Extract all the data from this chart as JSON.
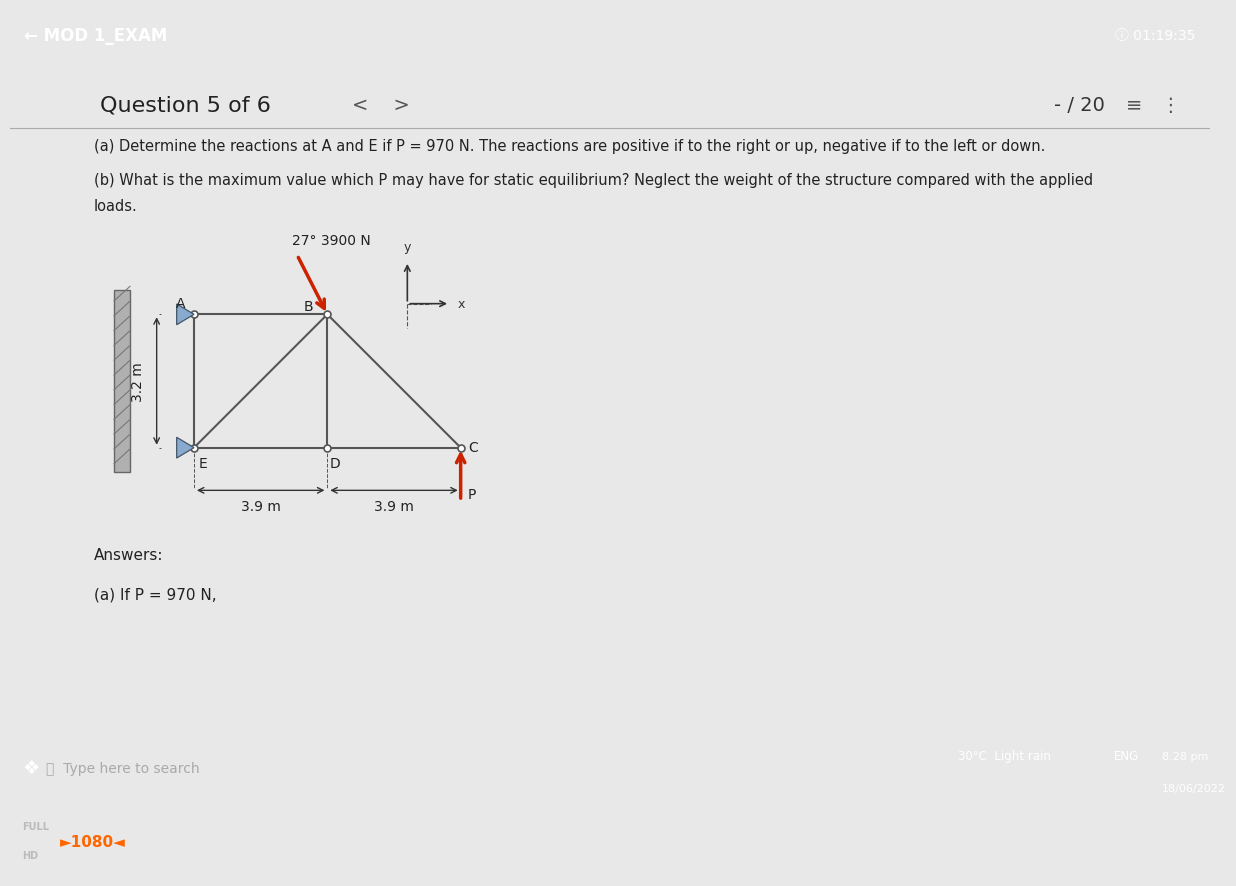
{
  "bg_color": "#e8e8e8",
  "header_color": "#1a2a4a",
  "header_text": "← MOD 1_EXAM",
  "header_timer": "ⓘ 01:19:35",
  "question_header": "Question 5 of 6",
  "nav_arrows": "<    >",
  "score": "- / 20",
  "part_a_text": "(a) Determine the reactions at A and E if P = 970 N. The reactions are positive if to the right or up, negative if to the left or down.",
  "part_b_line1": "(b) What is the maximum value which P may have for static equilibrium? Neglect the weight of the structure compared with the applied",
  "part_b_line2": "loads.",
  "answers_text": "Answers:",
  "answer_a_text": "(a) If P = 970 N,",
  "load_label": "3900 N",
  "load_angle_label": "27°",
  "dim_label_vertical": "3.2 m",
  "dim_label_h1": "3.9 m",
  "dim_label_h2": "3.9 m",
  "taskbar_color": "#2a2a2a",
  "bottom_bar_color": "#111111",
  "content_bg": "#ebebeb",
  "structure_color": "#555555",
  "load_arrow_color": "#cc2200",
  "P_arrow_color": "#cc2200",
  "support_color": "#88aace",
  "weather_text": "30°C  Light rain",
  "time_text": "8:28 pm",
  "date_text": "18/06/2022",
  "eng_text": "ENG",
  "search_text": "Type here to search",
  "hd_label": "1080"
}
